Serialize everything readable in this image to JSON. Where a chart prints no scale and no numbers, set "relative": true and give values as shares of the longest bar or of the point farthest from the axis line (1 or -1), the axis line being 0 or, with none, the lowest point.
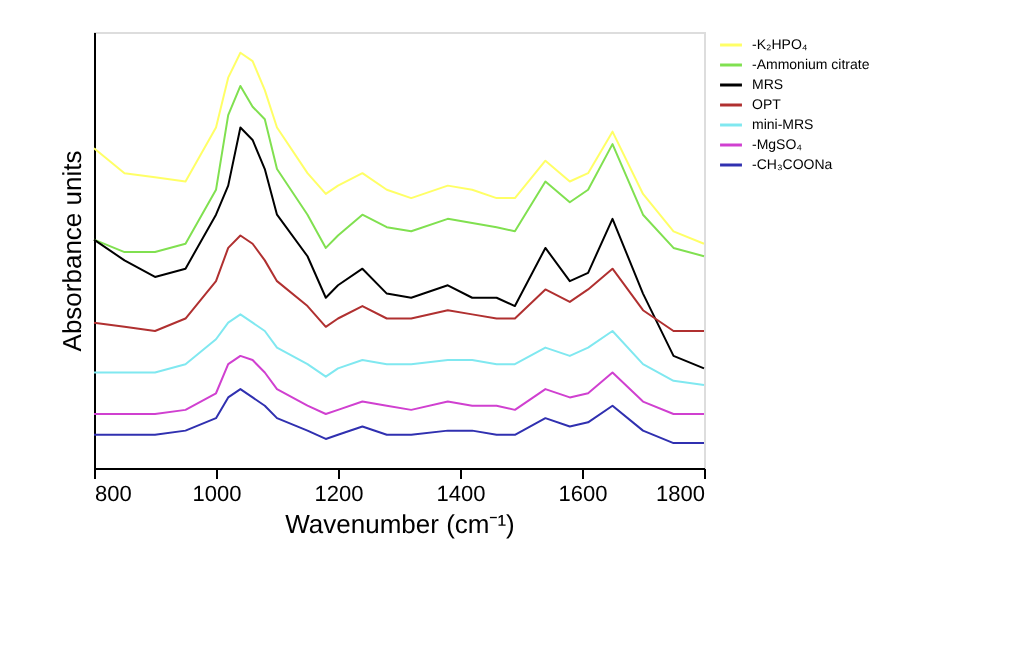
{
  "chart_data": {
    "type": "line",
    "relative": true,
    "xlabel": "Wavenumber (cm⁻¹)",
    "ylabel": "Absorbance units",
    "xlim": [
      800,
      1800
    ],
    "xticks": [
      800,
      1000,
      1200,
      1400,
      1600,
      1800
    ],
    "grid": false,
    "legend": "top right",
    "x": [
      800,
      850,
      900,
      950,
      1000,
      1020,
      1040,
      1060,
      1080,
      1100,
      1150,
      1180,
      1200,
      1240,
      1280,
      1320,
      1380,
      1420,
      1460,
      1490,
      1540,
      1580,
      1610,
      1650,
      1700,
      1750,
      1800
    ],
    "series": [
      {
        "name": "-K₂HPO₄",
        "color": "#ffff66",
        "values": [
          0.77,
          0.71,
          0.7,
          0.69,
          0.82,
          0.94,
          1.0,
          0.98,
          0.91,
          0.82,
          0.71,
          0.66,
          0.68,
          0.71,
          0.67,
          0.65,
          0.68,
          0.67,
          0.65,
          0.65,
          0.74,
          0.69,
          0.71,
          0.81,
          0.66,
          0.57,
          0.54
        ]
      },
      {
        "name": "-Ammonium citrate",
        "color": "#80e050",
        "values": [
          0.55,
          0.52,
          0.52,
          0.54,
          0.67,
          0.85,
          0.92,
          0.87,
          0.84,
          0.72,
          0.61,
          0.53,
          0.56,
          0.61,
          0.58,
          0.57,
          0.6,
          0.59,
          0.58,
          0.57,
          0.69,
          0.64,
          0.67,
          0.78,
          0.61,
          0.53,
          0.51
        ]
      },
      {
        "name": "MRS",
        "color": "#000000",
        "values": [
          0.55,
          0.5,
          0.46,
          0.48,
          0.61,
          0.68,
          0.82,
          0.79,
          0.72,
          0.61,
          0.51,
          0.41,
          0.44,
          0.48,
          0.42,
          0.41,
          0.44,
          0.41,
          0.41,
          0.39,
          0.53,
          0.45,
          0.47,
          0.6,
          0.42,
          0.27,
          0.24
        ]
      },
      {
        "name": "OPT",
        "color": "#b03030",
        "values": [
          0.35,
          0.34,
          0.33,
          0.36,
          0.45,
          0.53,
          0.56,
          0.54,
          0.5,
          0.45,
          0.39,
          0.34,
          0.36,
          0.39,
          0.36,
          0.36,
          0.38,
          0.37,
          0.36,
          0.36,
          0.43,
          0.4,
          0.43,
          0.48,
          0.38,
          0.33,
          0.33
        ]
      },
      {
        "name": "mini-MRS",
        "color": "#80e8f0",
        "values": [
          0.23,
          0.23,
          0.23,
          0.25,
          0.31,
          0.35,
          0.37,
          0.35,
          0.33,
          0.29,
          0.25,
          0.22,
          0.24,
          0.26,
          0.25,
          0.25,
          0.26,
          0.26,
          0.25,
          0.25,
          0.29,
          0.27,
          0.29,
          0.33,
          0.25,
          0.21,
          0.2
        ]
      },
      {
        "name": "-MgSO₄",
        "color": "#d040d0",
        "values": [
          0.13,
          0.13,
          0.13,
          0.14,
          0.18,
          0.25,
          0.27,
          0.26,
          0.23,
          0.19,
          0.15,
          0.13,
          0.14,
          0.16,
          0.15,
          0.14,
          0.16,
          0.15,
          0.15,
          0.14,
          0.19,
          0.17,
          0.18,
          0.23,
          0.16,
          0.13,
          0.13
        ]
      },
      {
        "name": "-CH₃COONa",
        "color": "#3030b0",
        "values": [
          0.08,
          0.08,
          0.08,
          0.09,
          0.12,
          0.17,
          0.19,
          0.17,
          0.15,
          0.12,
          0.09,
          0.07,
          0.08,
          0.1,
          0.08,
          0.08,
          0.09,
          0.09,
          0.08,
          0.08,
          0.12,
          0.1,
          0.11,
          0.15,
          0.09,
          0.06,
          0.06
        ]
      }
    ]
  }
}
